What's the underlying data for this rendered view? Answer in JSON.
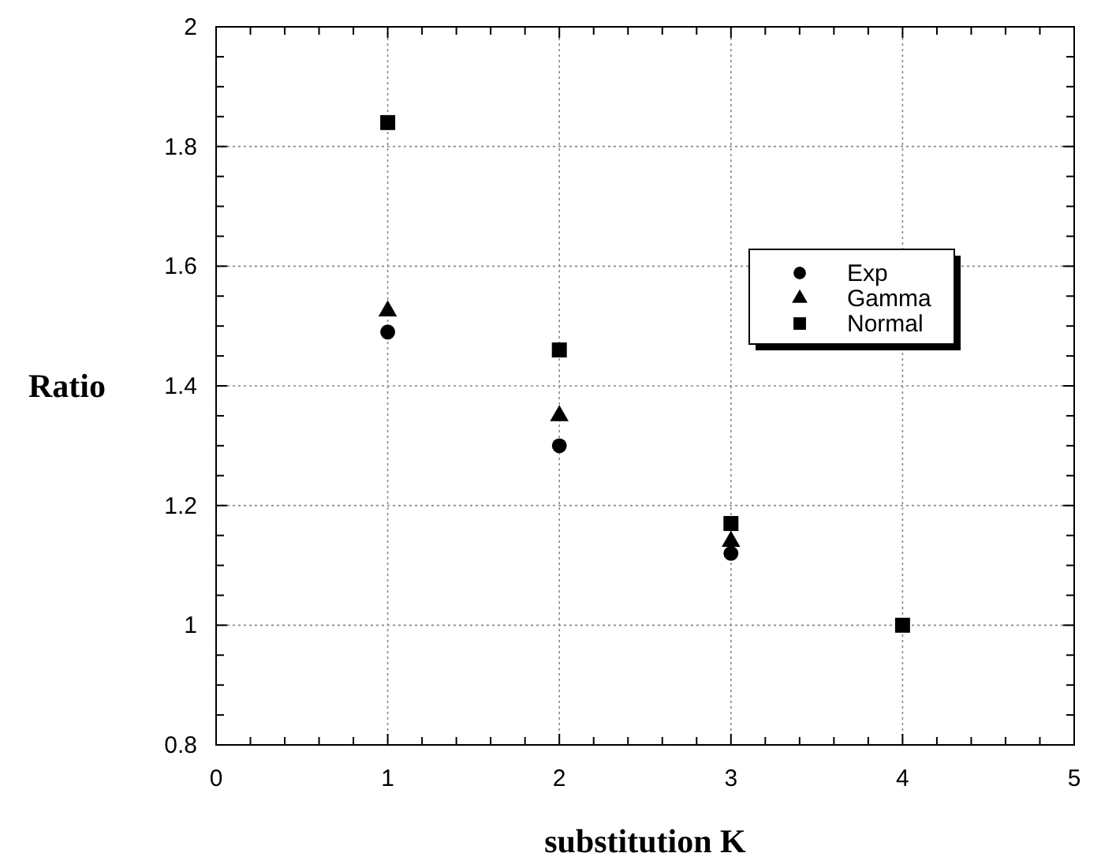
{
  "chart_data": {
    "type": "scatter",
    "xlabel": "substitution K",
    "ylabel": "Ratio",
    "x": [
      1,
      2,
      3,
      4
    ],
    "series": [
      {
        "name": "Exp",
        "color": "#000000",
        "marker": "circle",
        "values": [
          1.49,
          1.3,
          1.12,
          null
        ]
      },
      {
        "name": "Gamma",
        "color": "#000000",
        "marker": "triangle",
        "values": [
          1.525,
          1.35,
          1.14,
          null
        ]
      },
      {
        "name": "Normal",
        "color": "#000000",
        "marker": "square",
        "values": [
          1.84,
          1.46,
          1.17,
          1.0
        ]
      }
    ],
    "xlim": [
      0,
      5
    ],
    "xticks": [
      0,
      {
        "value": 0.2,
        "label": null
      },
      {
        "value": 0.4,
        "label": null
      },
      {
        "value": 0.6,
        "label": null
      },
      {
        "value": 0.8,
        "label": null
      },
      1,
      {
        "value": 1.2,
        "label": null
      },
      {
        "value": 1.4,
        "label": null
      },
      {
        "value": 1.6,
        "label": null
      },
      {
        "value": 1.8,
        "label": null
      },
      2,
      {
        "value": 2.2,
        "label": null
      },
      {
        "value": 2.4,
        "label": null
      },
      {
        "value": 2.6,
        "label": null
      },
      {
        "value": 2.8,
        "label": null
      },
      3,
      {
        "value": 3.2,
        "label": null
      },
      {
        "value": 3.4,
        "label": null
      },
      {
        "value": 3.6,
        "label": null
      },
      {
        "value": 3.8,
        "label": null
      },
      4,
      {
        "value": 4.2,
        "label": null
      },
      {
        "value": 4.4,
        "label": null
      },
      {
        "value": 4.6,
        "label": null
      },
      {
        "value": 4.8,
        "label": null
      },
      5
    ],
    "ylim": [
      0.8,
      2
    ],
    "yticks": [
      0.8,
      {
        "value": 0.85,
        "label": null
      },
      {
        "value": 0.9,
        "label": null
      },
      {
        "value": 0.95,
        "label": null
      },
      1,
      {
        "value": 1.05,
        "label": null
      },
      {
        "value": 1.1,
        "label": null
      },
      {
        "value": 1.15,
        "label": null
      },
      1.2,
      {
        "value": 1.25,
        "label": null
      },
      {
        "value": 1.3,
        "label": null
      },
      {
        "value": 1.35,
        "label": null
      },
      1.4,
      {
        "value": 1.45,
        "label": null
      },
      {
        "value": 1.5,
        "label": null
      },
      {
        "value": 1.55,
        "label": null
      },
      1.6,
      {
        "value": 1.65,
        "label": null
      },
      {
        "value": 1.7,
        "label": null
      },
      {
        "value": 1.75,
        "label": null
      },
      1.8,
      {
        "value": 1.85,
        "label": null
      },
      {
        "value": 1.9,
        "label": null
      },
      {
        "value": 1.95,
        "label": null
      },
      2
    ],
    "grid": true,
    "legend": "right"
  }
}
